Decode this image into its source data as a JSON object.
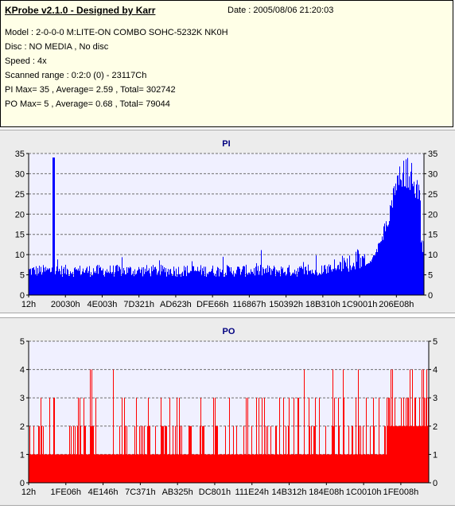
{
  "header": {
    "title": "KProbe v2.1.0 - Designed by Karr",
    "date": "Date : 2005/08/06 21:20:03",
    "lines": [
      "Model : 2-0-0-0 M:LITE-ON COMBO SOHC-5232K NK0H",
      "Disc : NO MEDIA , No disc",
      "Speed : 4x",
      "Scanned range : 0:2:0 (0) - 23117Ch",
      "PI Max= 35 , Average= 2.59 , Total= 302742",
      "PO Max= 5 , Average= 0.68 , Total= 79044"
    ]
  },
  "chart_data": [
    {
      "type": "bar",
      "title": "PI",
      "ylim": [
        0,
        35
      ],
      "yticks": [
        0,
        5,
        10,
        15,
        20,
        25,
        30,
        35
      ],
      "xticks": [
        "12h",
        "20030h",
        "4E003h",
        "7D321h",
        "AD623h",
        "DFE66h",
        "116867h",
        "150392h",
        "18B310h",
        "1C9001h",
        "206E08h"
      ],
      "x_range": [
        "12h",
        "23117Ch"
      ],
      "grid": true,
      "color": "#0000ff",
      "baseline_level": 5,
      "profile_description": [
        {
          "from": "12h",
          "to": "1C9001h",
          "approx": 6
        },
        {
          "from": "1C9001h",
          "to": "206E08h",
          "approx": 12
        },
        {
          "from": "206E08h",
          "to": "23117Ch",
          "approx": 28
        }
      ],
      "spikes": [
        {
          "x": "20030h",
          "value": 34
        }
      ],
      "max": 35
    },
    {
      "type": "bar",
      "title": "PO",
      "ylim": [
        0,
        5
      ],
      "yticks": [
        0,
        1,
        2,
        3,
        4,
        5
      ],
      "xticks": [
        "12h",
        "1FE06h",
        "4E146h",
        "7C371h",
        "AB325h",
        "DC801h",
        "111E24h",
        "14B312h",
        "184E08h",
        "1C0010h",
        "1FE008h"
      ],
      "x_range": [
        "12h",
        "23117Ch"
      ],
      "grid": true,
      "color": "#ff0000",
      "baseline_level": 1,
      "max": 5
    }
  ]
}
